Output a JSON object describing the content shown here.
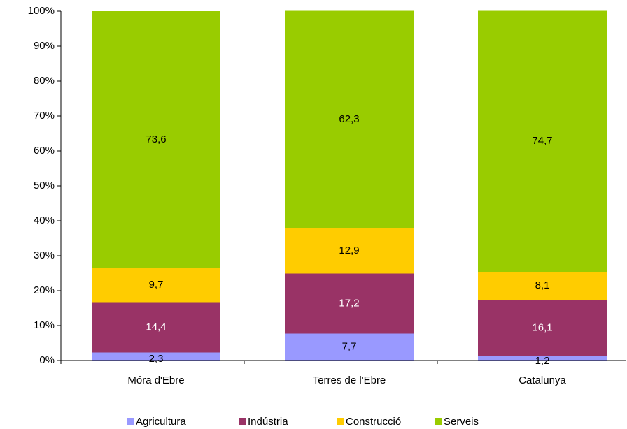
{
  "chart_data": {
    "type": "stacked_bar",
    "categories": [
      "Móra d'Ebre",
      "Terres de l'Ebre",
      "Catalunya"
    ],
    "series": [
      {
        "name": "Agricultura",
        "color": "#9999ff",
        "values": [
          2.3,
          7.7,
          1.2
        ],
        "value_labels": [
          "2,3",
          "7,7",
          "1,2"
        ],
        "label_color": "#000000"
      },
      {
        "name": "Indústria",
        "color": "#993366",
        "values": [
          14.4,
          17.2,
          16.1
        ],
        "value_labels": [
          "14,4",
          "17,2",
          "16,1"
        ],
        "label_color": "#ffffff"
      },
      {
        "name": "Construcció",
        "color": "#ffcc00",
        "values": [
          9.7,
          12.9,
          8.1
        ],
        "value_labels": [
          "9,7",
          "12,9",
          "8,1"
        ],
        "label_color": "#000000"
      },
      {
        "name": "Serveis",
        "color": "#99cc00",
        "values": [
          73.6,
          62.3,
          74.7
        ],
        "value_labels": [
          "73,6",
          "62,3",
          "74,7"
        ],
        "label_color": "#000000"
      }
    ],
    "ylim": [
      0,
      100
    ],
    "yticks": [
      {
        "value": 0,
        "label": "0%"
      },
      {
        "value": 10,
        "label": "10%"
      },
      {
        "value": 20,
        "label": "20%"
      },
      {
        "value": 30,
        "label": "30%"
      },
      {
        "value": 40,
        "label": "40%"
      },
      {
        "value": 50,
        "label": "50%"
      },
      {
        "value": 60,
        "label": "60%"
      },
      {
        "value": 70,
        "label": "70%"
      },
      {
        "value": 80,
        "label": "80%"
      },
      {
        "value": 90,
        "label": "90%"
      },
      {
        "value": 100,
        "label": "100%"
      }
    ],
    "grid": false,
    "legend": "bottom"
  }
}
